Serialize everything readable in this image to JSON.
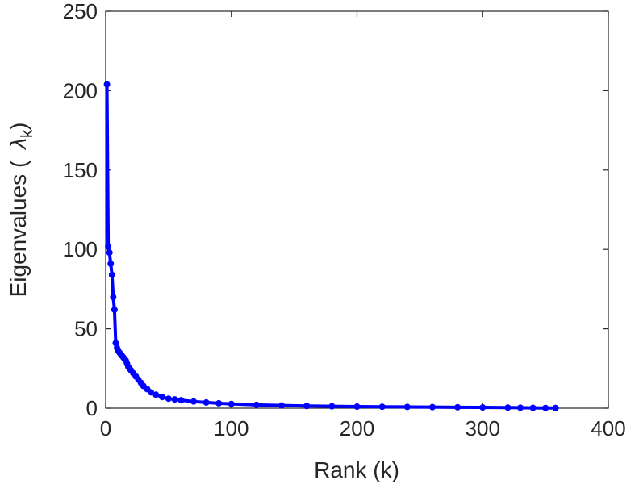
{
  "chart_data": {
    "type": "line",
    "xlabel": "Rank (k)",
    "ylabel": {
      "prefix": "Eigenvalues (",
      "symbol": "λ",
      "subscript": "k",
      "suffix": ")"
    },
    "xlim": [
      0,
      400
    ],
    "ylim": [
      0,
      250
    ],
    "xticks": [
      "0",
      "100",
      "200",
      "300",
      "400"
    ],
    "yticks": [
      "0",
      "50",
      "100",
      "150",
      "200",
      "250"
    ],
    "grid": false,
    "box": true,
    "series_color": "#0000ff",
    "series": [
      {
        "x": [
          1,
          2,
          3,
          4,
          5,
          6,
          7,
          8,
          9,
          10,
          11,
          12,
          13,
          14,
          15,
          16,
          17,
          18,
          19,
          20,
          22,
          24,
          26,
          28,
          30,
          33,
          36,
          40,
          45,
          50,
          55,
          60,
          70,
          80,
          90,
          100,
          120,
          140,
          160,
          180,
          200,
          220,
          240,
          260,
          280,
          300,
          320,
          330,
          340,
          350,
          358
        ],
        "y": [
          204,
          102,
          98,
          91,
          84,
          70,
          62,
          41,
          38,
          36,
          35,
          34,
          33,
          32,
          31,
          30,
          28,
          26,
          25,
          24,
          22,
          20,
          18,
          16,
          14,
          12,
          10,
          8.5,
          7,
          6,
          5.5,
          5,
          4.2,
          3.6,
          3.1,
          2.7,
          2.1,
          1.7,
          1.4,
          1.2,
          1.0,
          0.9,
          0.8,
          0.7,
          0.6,
          0.5,
          0.4,
          0.3,
          0.2,
          0.15,
          0.1
        ]
      }
    ]
  }
}
